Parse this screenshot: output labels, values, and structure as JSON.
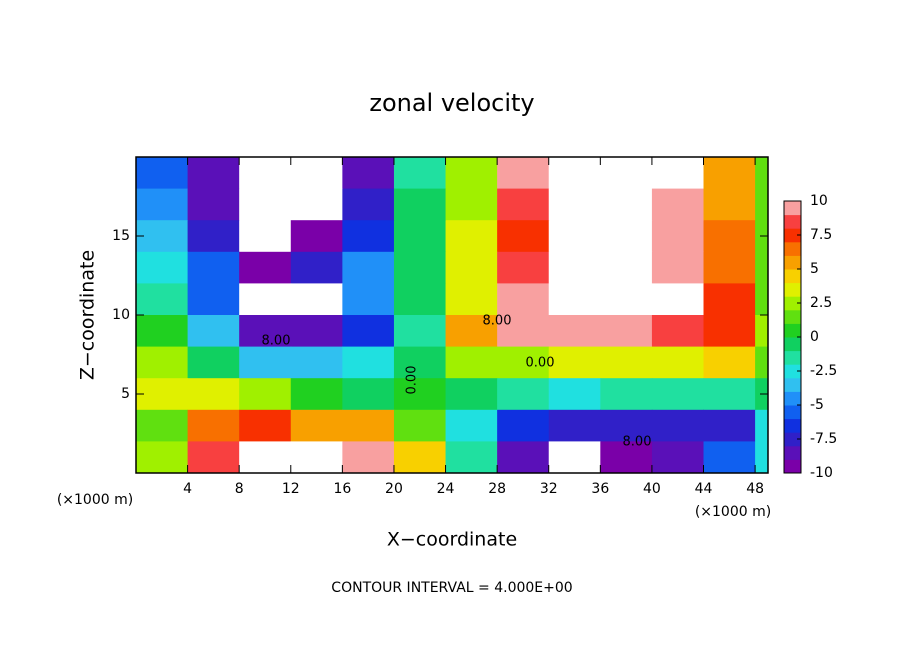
{
  "chart_data": {
    "type": "contour",
    "title": "zonal velocity",
    "x_label": "X−coordinate",
    "y_label": "Z−coordinate",
    "x_unit_label": "(×1000 m)",
    "y_unit_label": "(×1000 m)",
    "footer": "CONTOUR INTERVAL = 4.000E+00",
    "x": [
      2,
      6,
      10,
      14,
      18,
      22,
      26,
      30,
      34,
      38,
      42,
      46,
      50
    ],
    "y": [
      19,
      17,
      15,
      13,
      11,
      9,
      7,
      5,
      3,
      1
    ],
    "z": [
      [
        -6,
        -9,
        -12,
        -12,
        -9,
        -2,
        2,
        9,
        12,
        12,
        11,
        5,
        1
      ],
      [
        -5,
        -9,
        -12,
        -12,
        -8,
        -1,
        2,
        8,
        12,
        12,
        10,
        5,
        1
      ],
      [
        -4,
        -8,
        -11,
        -10,
        -7,
        -1,
        3,
        7,
        12,
        12,
        10,
        6,
        1
      ],
      [
        -3,
        -6,
        -10,
        -8,
        -5,
        -1,
        3,
        8,
        12,
        12,
        10,
        6,
        1
      ],
      [
        -2,
        -6,
        -12,
        -11,
        -5,
        -1,
        3,
        9,
        12,
        12,
        11,
        7,
        1
      ],
      [
        0,
        -4,
        -9,
        -9,
        -7,
        -2,
        5,
        9,
        9,
        9,
        8,
        7,
        2
      ],
      [
        2,
        -1,
        -4,
        -4,
        -3,
        -1,
        2,
        2,
        3,
        3,
        3,
        4,
        1
      ],
      [
        3,
        3,
        2,
        0,
        -1,
        0,
        -1,
        -2,
        -3,
        -2,
        -2,
        -2,
        -1
      ],
      [
        1,
        6,
        7,
        5,
        5,
        1,
        -3,
        -7,
        -8,
        -8,
        -8,
        -8,
        -3
      ],
      [
        2,
        8,
        12,
        12,
        9,
        4,
        -2,
        -9,
        -12,
        -10,
        -9,
        -6,
        -3
      ]
    ],
    "xlim": [
      0,
      49
    ],
    "xticks": [
      4,
      8,
      12,
      16,
      20,
      24,
      28,
      32,
      36,
      40,
      44,
      48
    ],
    "ylim": [
      0,
      20
    ],
    "yticks": [
      5,
      10,
      15
    ],
    "colorbar_lim": [
      -10,
      10
    ],
    "colorbar_ticks": [
      10,
      7.5,
      5,
      2.5,
      0,
      -2.5,
      -5,
      -7.5,
      -10
    ],
    "colormap": [
      "#7a00a8",
      "#5a10b8",
      "#3020c8",
      "#1030e0",
      "#1060f0",
      "#2090f8",
      "#30c0f0",
      "#20e0e0",
      "#20e0a0",
      "#10d060",
      "#20d020",
      "#60e010",
      "#a0f000",
      "#e0f000",
      "#f8d000",
      "#f8a000",
      "#f87000",
      "#f83000",
      "#f84040",
      "#f8a0a0"
    ],
    "out_of_range_color": "#ffffff",
    "contour_labels": [
      "8.00",
      "8.00",
      "0.00",
      "0.00",
      "8.00"
    ]
  }
}
